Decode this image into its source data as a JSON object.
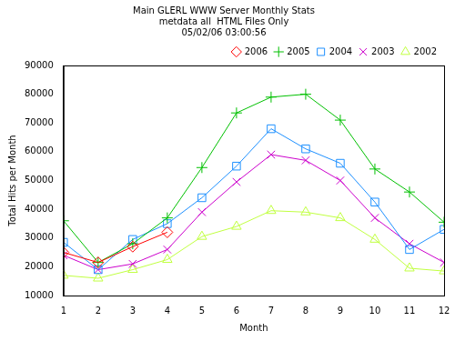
{
  "chart_data": {
    "type": "line",
    "title": "Main GLERL WWW Server Monthly Stats",
    "subtitle": [
      "metdata all  HTML Files Only",
      "05/02/06 03:00:56"
    ],
    "x_label": "Month",
    "y_label": "Total Hits per Month",
    "x": [
      1,
      2,
      3,
      4,
      5,
      6,
      7,
      8,
      9,
      10,
      11,
      12
    ],
    "xlim": [
      1,
      12
    ],
    "xticks": [
      1,
      2,
      3,
      4,
      5,
      6,
      7,
      8,
      9,
      10,
      11,
      12
    ],
    "ylim": [
      10000,
      90000
    ],
    "yticks": [
      10000,
      20000,
      30000,
      40000,
      50000,
      60000,
      70000,
      80000,
      90000
    ],
    "grid": false,
    "legend": "upper right",
    "series": [
      {
        "name": "2006",
        "color": "#ff0000",
        "marker": "diamond",
        "values": [
          25000,
          21500,
          27000,
          32000,
          null,
          null,
          null,
          null,
          null,
          null,
          null,
          null
        ]
      },
      {
        "name": "2005",
        "color": "#00c000",
        "marker": "plus",
        "values": [
          36000,
          21500,
          28000,
          37000,
          54500,
          73500,
          79000,
          80000,
          71000,
          54000,
          46000,
          35500
        ]
      },
      {
        "name": "2004",
        "color": "#1e90ff",
        "marker": "square",
        "values": [
          28500,
          19000,
          29500,
          35000,
          44000,
          55000,
          68000,
          61000,
          56000,
          42500,
          26000,
          33000
        ]
      },
      {
        "name": "2003",
        "color": "#cc00cc",
        "marker": "x",
        "values": [
          24000,
          19000,
          21000,
          26000,
          39000,
          49500,
          59000,
          57000,
          50000,
          37000,
          28000,
          21500
        ]
      },
      {
        "name": "2002",
        "color": "#c0ff40",
        "marker": "triangle",
        "values": [
          17000,
          16000,
          19000,
          22500,
          30500,
          34000,
          39500,
          39000,
          37000,
          29500,
          19500,
          18500
        ]
      }
    ]
  }
}
